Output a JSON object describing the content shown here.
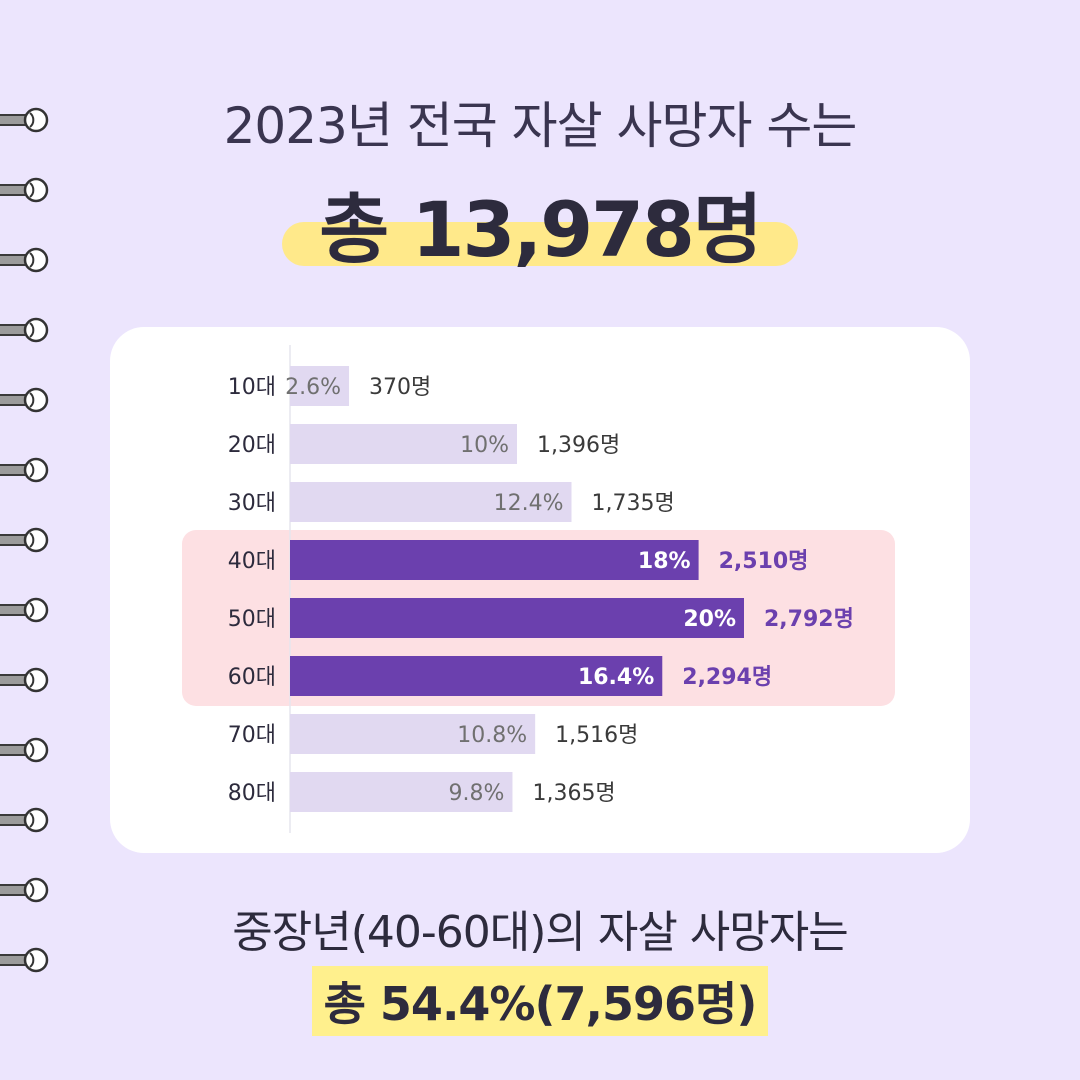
{
  "header": {
    "headline": "2023년 전국 자살 사망자 수는",
    "total": "총 13,978명"
  },
  "footer": {
    "line1": "중장년(40-60대)의 자살 사망자는",
    "line2": "총 54.4%(7,596명)"
  },
  "colors": {
    "background": "#ece5fd",
    "bar_default": "#e1d9f1",
    "bar_highlight": "#6b40ae",
    "highlight_band": "#fde0e3",
    "total_pill": "#ffe98a",
    "footer_highlight": "#fff08d",
    "count_highlight": "#6b40ae"
  },
  "chart_data": {
    "type": "bar",
    "orientation": "horizontal",
    "categories": [
      "10대",
      "20대",
      "30대",
      "40대",
      "50대",
      "60대",
      "70대",
      "80대"
    ],
    "percent_labels": [
      "2.6%",
      "10%",
      "12.4%",
      "18%",
      "20%",
      "16.4%",
      "10.8%",
      "9.8%"
    ],
    "values": [
      2.6,
      10,
      12.4,
      18,
      20,
      16.4,
      10.8,
      9.8
    ],
    "counts": [
      "370명",
      "1,396명",
      "1,735명",
      "2,510명",
      "2,792명",
      "2,294명",
      "1,516명",
      "1,365명"
    ],
    "highlighted": [
      false,
      false,
      false,
      true,
      true,
      true,
      false,
      false
    ],
    "xlim": [
      0,
      20
    ]
  },
  "decor": {
    "ring_icon": "spiral-binding-ring-icon",
    "ring_count": 13
  }
}
